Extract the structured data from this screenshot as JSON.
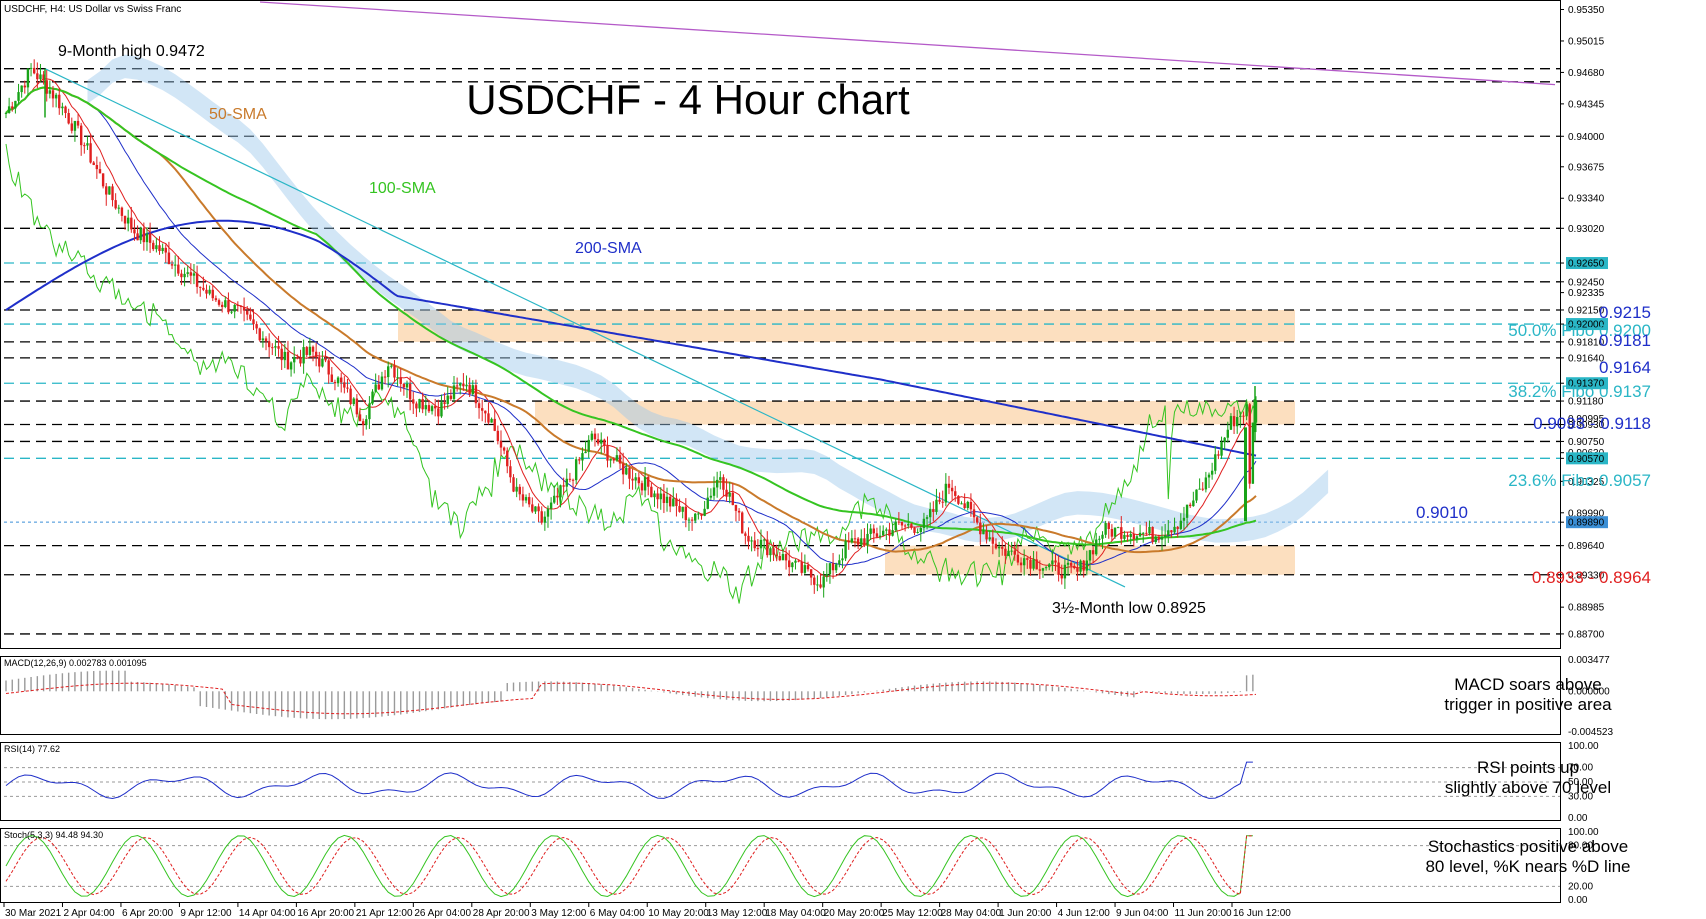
{
  "header": {
    "symbol_line": "USDCHF, H4:  US Dollar vs Swiss Franc"
  },
  "chart_data": {
    "type": "candlestick",
    "title": "USDCHF - 4 Hour chart",
    "symbol": "USDCHF",
    "timeframe": "H4",
    "ylim": [
      0.8855,
      0.9543
    ],
    "y_ticks": [
      0.9535,
      0.95015,
      0.9468,
      0.94345,
      0.94,
      0.93675,
      0.9334,
      0.9302,
      0.9265,
      0.9245,
      0.92335,
      0.9215,
      0.92,
      0.9181,
      0.9164,
      0.9137,
      0.9118,
      0.90995,
      0.9093,
      0.9075,
      0.9063,
      0.9057,
      0.90325,
      0.8999,
      0.8989,
      0.8964,
      0.8933,
      0.88985,
      0.887
    ],
    "highlighted_levels": [
      {
        "value": 0.9472,
        "color": "#000000"
      },
      {
        "value": 0.9458,
        "color": "#000000"
      },
      {
        "value": 0.9265,
        "color": "#2ab6c6"
      },
      {
        "value": 0.92,
        "color": "#2ab6c6"
      },
      {
        "value": 0.9137,
        "color": "#2ab6c6"
      },
      {
        "value": 0.9057,
        "color": "#2ab6c6"
      },
      {
        "value": 0.8989,
        "color": "#3b8fd6"
      }
    ],
    "x_labels": [
      "30 Mar 2021",
      "2 Apr 04:00",
      "6 Apr 20:00",
      "9 Apr 12:00",
      "14 Apr 04:00",
      "16 Apr 20:00",
      "21 Apr 12:00",
      "26 Apr 04:00",
      "28 Apr 20:00",
      "3 May 12:00",
      "6 May 04:00",
      "10 May 20:00",
      "13 May 12:00",
      "18 May 04:00",
      "20 May 20:00",
      "25 May 12:00",
      "28 May 04:00",
      "1 Jun 20:00",
      "4 Jun 12:00",
      "9 Jun 04:00",
      "11 Jun 20:00",
      "16 Jun 12:00"
    ],
    "price_path": [
      0.9425,
      0.9472,
      0.944,
      0.9395,
      0.934,
      0.93,
      0.928,
      0.9255,
      0.923,
      0.9215,
      0.919,
      0.916,
      0.917,
      0.914,
      0.91,
      0.916,
      0.912,
      0.911,
      0.914,
      0.91,
      0.902,
      0.899,
      0.903,
      0.908,
      0.905,
      0.903,
      0.901,
      0.899,
      0.904,
      0.8975,
      0.896,
      0.894,
      0.8925,
      0.8965,
      0.8975,
      0.8985,
      0.8985,
      0.903,
      0.899,
      0.896,
      0.895,
      0.894,
      0.8935,
      0.898,
      0.898,
      0.8975,
      0.899,
      0.903,
      0.9095,
      0.9118
    ],
    "indicators": [
      {
        "name": "50-SMA",
        "color": "#c97a2b"
      },
      {
        "name": "100-SMA",
        "color": "#35c421"
      },
      {
        "name": "200-SMA",
        "color": "#1f2fc9"
      }
    ],
    "zones": [
      {
        "from": 0.9181,
        "to": 0.9215,
        "color": "#fbd9b4"
      },
      {
        "from": 0.9093,
        "to": 0.9118,
        "color": "#fbd9b4"
      },
      {
        "from": 0.8933,
        "to": 0.8964,
        "color": "#fbd9b4"
      }
    ],
    "annotations": {
      "high": "9-Month high 0.9472",
      "low": "3½-Month low 0.8925",
      "sma50": "50-SMA",
      "sma100": "100-SMA",
      "sma200": "200-SMA",
      "r9215": "0.9215",
      "fibo50": "50.0% Fibo 0.9200",
      "r9181": "0.9181",
      "r9164": "0.9164",
      "fibo382": "38.2% Fibo 0.9137",
      "zone1": "0.9093 - 0.9118",
      "fibo236": "23.6% Fibo 0.9057",
      "s9010": "0.9010",
      "zone3": "0.8933 - 0.8964"
    },
    "panels": {
      "macd": {
        "label": "MACD(12,26,9) 0.002783 0.001095",
        "ticks": [
          "0.003477",
          "0.000000",
          "-0.004523"
        ],
        "comment_line1": "MACD soars above",
        "comment_line2": "trigger in positive area"
      },
      "rsi": {
        "label": "RSI(14) 77.62",
        "ticks": [
          "100.00",
          "70.00",
          "50.00",
          "30.00",
          "0.00"
        ],
        "comment_line1": "RSI points up",
        "comment_line2": "slightly above 70 level"
      },
      "stoch": {
        "label": "Stoch(5,3,3) 94.48 94.30",
        "ticks": [
          "100.00",
          "80.00",
          "20.00",
          "0.00"
        ],
        "comment_line1": "Stochastics positive above",
        "comment_line2": "80 level, %K nears %D line"
      }
    }
  }
}
